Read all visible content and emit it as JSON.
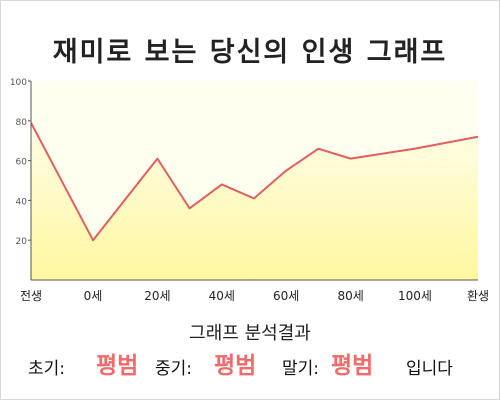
{
  "chart_data": {
    "type": "area",
    "title": "재미로 보는 당신의 인생 그래프",
    "x": [
      "전생",
      "0세",
      "20세",
      "40세",
      "60세",
      "80세",
      "100세",
      "환생"
    ],
    "ylim": [
      0,
      100
    ],
    "yticks": [
      20,
      40,
      60,
      80,
      100
    ],
    "points": [
      {
        "x": "전생",
        "y": 79
      },
      {
        "x": "0세",
        "y": 20
      },
      {
        "x": "20세",
        "y": 61
      },
      {
        "x": "30세",
        "y": 36
      },
      {
        "x": "40세",
        "y": 48
      },
      {
        "x": "50세",
        "y": 41
      },
      {
        "x": "60세",
        "y": 55
      },
      {
        "x": "70세",
        "y": 66
      },
      {
        "x": "80세",
        "y": 61
      },
      {
        "x": "100세",
        "y": 66
      },
      {
        "x": "환생",
        "y": 72
      }
    ],
    "grid": false,
    "colors": {
      "line": "#e05f5f",
      "fill_top": "#fffde8",
      "fill_bottom": "#fff7a0",
      "plot_bg": "#fffff0",
      "axis": "#555555"
    }
  },
  "analysis": {
    "heading": "그래프 분석결과",
    "early_label": "초기:",
    "early_value": "평범",
    "mid_label": "중기:",
    "mid_value": "평범",
    "late_label": "말기:",
    "late_value": "평범",
    "ending": "입니다"
  }
}
